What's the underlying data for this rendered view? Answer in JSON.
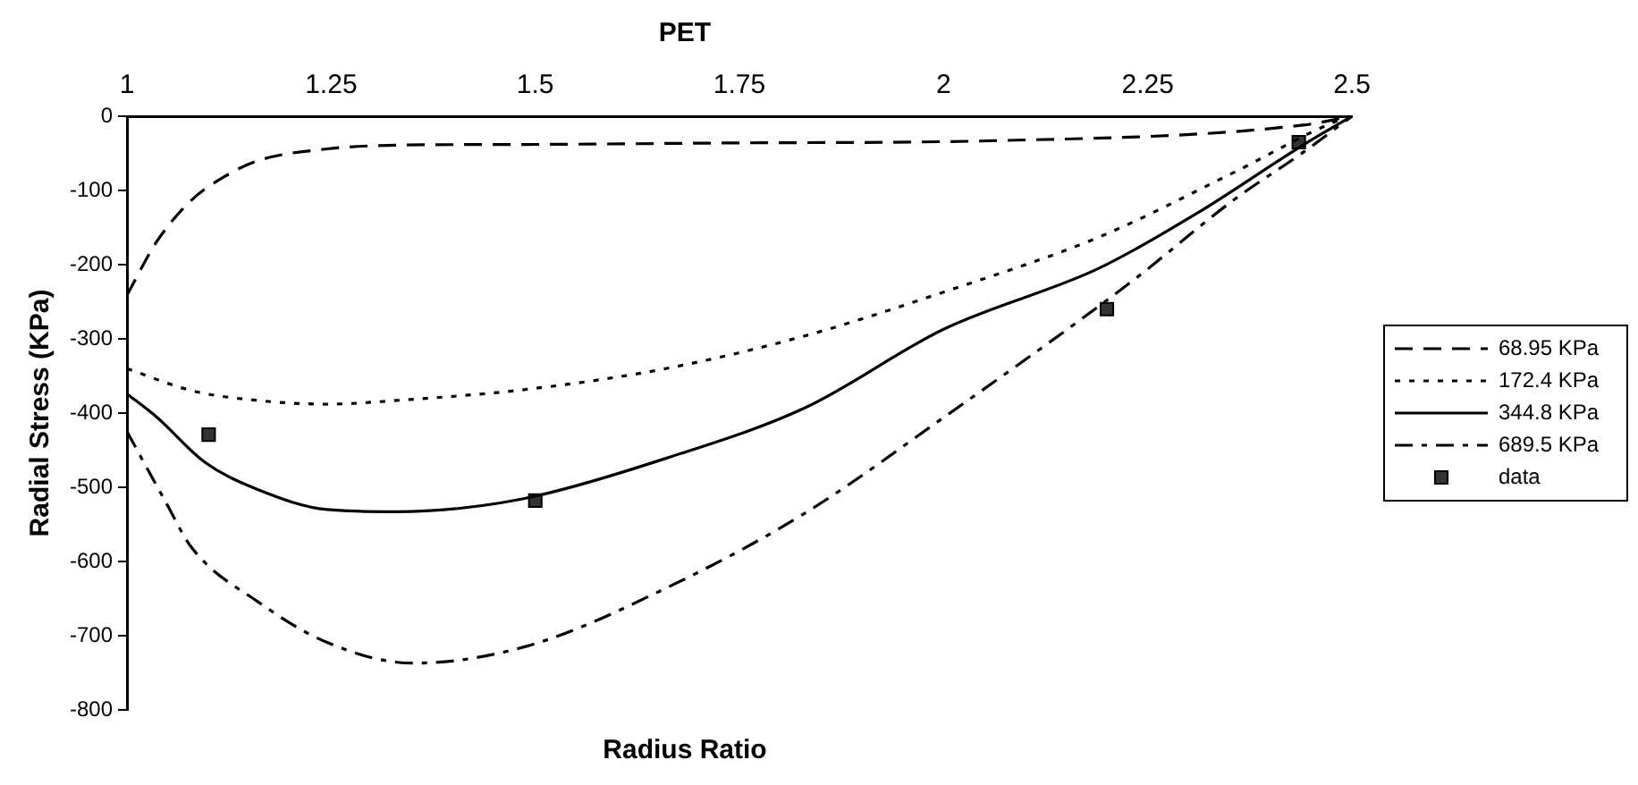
{
  "chart_data": {
    "type": "line",
    "title": "PET",
    "xlabel": "Radius Ratio",
    "ylabel": "Radial Stress (KPa)",
    "xlim": [
      1,
      2.5
    ],
    "xticks": [
      1,
      1.25,
      1.5,
      1.75,
      2,
      2.25,
      2.5
    ],
    "ylim": [
      -800,
      0
    ],
    "yticks": [
      0,
      -100,
      -200,
      -300,
      -400,
      -500,
      -600,
      -700,
      -800
    ],
    "grid": false,
    "legend": "right",
    "marker": "none",
    "series": [
      {
        "name": "68.95 KPa",
        "color": "#000000",
        "line_style": "dashed",
        "x": [
          1,
          1.037,
          1.079,
          1.12,
          1.16,
          1.245,
          1.33,
          1.49,
          1.74,
          2.06,
          2.44,
          2.5
        ],
        "values": [
          -241,
          -168,
          -113,
          -81,
          -60,
          -44,
          -39,
          -38,
          -36,
          -33,
          -12,
          0
        ]
      },
      {
        "name": "172.4 KPa",
        "color": "#000000",
        "line_style": "dotted",
        "x": [
          1,
          1.08,
          1.16,
          1.245,
          1.33,
          1.49,
          1.66,
          1.83,
          2,
          2.19,
          2.355,
          2.48,
          2.5
        ],
        "values": [
          -340,
          -370,
          -383,
          -388,
          -383,
          -368,
          -340,
          -296,
          -237,
          -163,
          -76,
          -7,
          0
        ]
      },
      {
        "name": "344.8 KPa",
        "color": "#000000",
        "line_style": "solid",
        "x": [
          1,
          1.037,
          1.095,
          1.16,
          1.245,
          1.33,
          1.41,
          1.5,
          1.66,
          1.83,
          2,
          2.19,
          2.31,
          2.44,
          2.5
        ],
        "values": [
          -374,
          -406,
          -466,
          -503,
          -530,
          -533,
          -528,
          -512,
          -461,
          -393,
          -287,
          -205,
          -131,
          -39,
          0
        ]
      },
      {
        "name": "689.5 KPa",
        "color": "#000000",
        "line_style": "dashdot",
        "x": [
          1,
          1.046,
          1.079,
          1.16,
          1.245,
          1.35,
          1.49,
          1.66,
          1.83,
          2,
          2.23,
          2.355,
          2.44,
          2.5
        ],
        "values": [
          -425,
          -517,
          -581,
          -654,
          -709,
          -737,
          -714,
          -636,
          -535,
          -406,
          -223,
          -113,
          -49,
          0
        ]
      },
      {
        "name": "data",
        "type": "scatter",
        "marker": "square",
        "color": "#333333",
        "x": [
          1.1,
          1.5,
          2.2,
          2.435
        ],
        "values": [
          -429,
          -518,
          -260,
          -35
        ]
      }
    ]
  }
}
